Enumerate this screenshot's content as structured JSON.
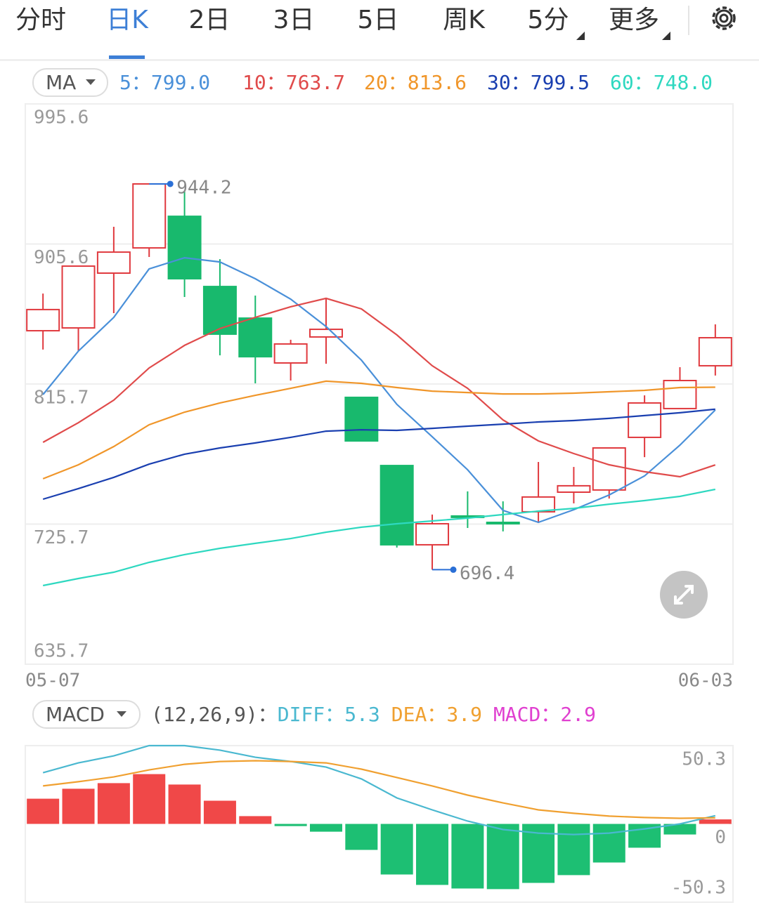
{
  "tabs": {
    "items": [
      "分时",
      "日K",
      "2日",
      "3日",
      "5日",
      "周K",
      "5分",
      "更多"
    ],
    "active": 1
  },
  "chart_data": [
    {
      "type": "candlestick",
      "indicator": "MA",
      "separator": "：",
      "categories": [
        "05-07",
        null,
        null,
        null,
        null,
        null,
        null,
        null,
        null,
        null,
        null,
        null,
        null,
        null,
        null,
        null,
        null,
        null,
        null,
        "06-03"
      ],
      "open": [
        849.9,
        851.7,
        886.9,
        903.1,
        923.4,
        878.3,
        858.0,
        829.2,
        845.9,
        807.1,
        763.3,
        712.4,
        730.9,
        726.8,
        733.6,
        746.2,
        747.6,
        781.4,
        799.9,
        827.4
      ],
      "high": [
        873.8,
        891.4,
        916.7,
        944.2,
        939.2,
        895.9,
        872.5,
        844.1,
        870.7,
        807.1,
        763.3,
        731.8,
        746.7,
        740.3,
        765.6,
        762.4,
        774.6,
        808.4,
        826.5,
        854.0
      ],
      "low": [
        837.8,
        836.8,
        861.2,
        897.3,
        871.6,
        834.1,
        816.1,
        817.9,
        828.7,
        779.1,
        710.6,
        696.4,
        723.2,
        721.0,
        726.4,
        739.0,
        742.1,
        768.7,
        799.9,
        821.1
      ],
      "close": [
        863.5,
        891.4,
        900.4,
        944.2,
        883.3,
        847.7,
        833.2,
        841.4,
        850.8,
        779.1,
        712.4,
        725.9,
        730.0,
        725.9,
        743.1,
        750.3,
        774.6,
        803.5,
        817.9,
        845.4
      ],
      "up_color": "#e0393e",
      "down_color": "#18b96d",
      "series": [
        {
          "name": "5",
          "color": "#4a90d9",
          "values": [
            808.9,
            836.8,
            858.5,
            889.6,
            896.8,
            894.1,
            883.3,
            870.2,
            852.6,
            831.0,
            802.6,
            781.8,
            760.6,
            734.5,
            726.8,
            734.9,
            744.4,
            756.6,
            776.4,
            799.0
          ],
          "value_labels": [
            null,
            null,
            null,
            null,
            null,
            null,
            null,
            null,
            null,
            null,
            null,
            null,
            null,
            null,
            null,
            null,
            null,
            null,
            null,
            "799.0"
          ]
        },
        {
          "name": "10",
          "color": "#e04b4b",
          "values": [
            778.2,
            790.8,
            805.3,
            826.0,
            840.5,
            851.3,
            858.5,
            865.3,
            870.7,
            863.9,
            847.2,
            827.4,
            812.9,
            792.6,
            779.1,
            771.0,
            763.8,
            759.3,
            756.1,
            763.7
          ]
        },
        {
          "name": "20",
          "color": "#f0962a",
          "values": [
            754.8,
            763.8,
            775.5,
            789.5,
            797.6,
            803.5,
            808.4,
            812.9,
            817.5,
            816.1,
            813.4,
            811.1,
            810.2,
            809.3,
            809.3,
            809.8,
            810.7,
            811.6,
            813.4,
            813.6
          ]
        },
        {
          "name": "30",
          "color": "#1a3fb0",
          "values": [
            741.7,
            748.5,
            755.7,
            764.2,
            770.6,
            774.6,
            777.8,
            781.4,
            785.4,
            786.3,
            785.9,
            787.2,
            788.6,
            789.9,
            791.3,
            792.2,
            793.6,
            795.4,
            797.2,
            799.5
          ]
        },
        {
          "name": "60",
          "color": "#2ed8c0",
          "values": [
            686.2,
            690.7,
            694.8,
            701.1,
            706.1,
            710.1,
            713.3,
            716.4,
            720.5,
            723.7,
            725.9,
            727.7,
            729.5,
            731.8,
            734.0,
            735.8,
            738.5,
            740.8,
            743.5,
            748.0
          ],
          "value_labels": [
            null,
            null,
            null,
            null,
            null,
            null,
            null,
            null,
            null,
            null,
            null,
            null,
            null,
            null,
            null,
            null,
            null,
            null,
            null,
            "748.0"
          ]
        }
      ],
      "ylim": [
        635.7,
        995.6
      ],
      "yticks": [
        995.6,
        905.6,
        815.7,
        725.7,
        635.7
      ],
      "grid": true
    },
    {
      "type": "macd",
      "indicator": "MACD",
      "params": "(12,26,9)",
      "separator": "：",
      "series": [
        {
          "name": "DIFF",
          "color": "#4ab8d0",
          "style": "line",
          "values": [
            32.9,
            39.2,
            43.7,
            50.3,
            50.3,
            47.4,
            42.8,
            40.1,
            36.5,
            28.9,
            16.7,
            9.0,
            1.8,
            -3.6,
            -5.9,
            -6.8,
            -5.9,
            -3.2,
            0.0,
            5.3
          ]
        },
        {
          "name": "DEA",
          "color": "#f0a030",
          "style": "line",
          "values": [
            24.4,
            27.1,
            30.2,
            34.7,
            38.3,
            40.1,
            40.6,
            40.1,
            39.2,
            35.2,
            29.8,
            24.4,
            18.5,
            13.5,
            9.0,
            6.8,
            5.0,
            4.1,
            3.6,
            3.9
          ]
        },
        {
          "name": "MACD",
          "color": "#e040d0",
          "style": "bar",
          "up_color": "#f04848",
          "down_color": "#1dbf73",
          "values": [
            16.2,
            22.6,
            26.2,
            32.0,
            25.3,
            14.9,
            5.0,
            -1.4,
            -5.0,
            -16.7,
            -32.5,
            -39.2,
            -41.5,
            -41.9,
            -37.9,
            -32.9,
            -24.8,
            -15.3,
            -6.8,
            2.9
          ]
        }
      ],
      "ylim": [
        -50.3,
        50.3
      ],
      "yticks": [
        50.3,
        0,
        -50.3
      ]
    }
  ]
}
